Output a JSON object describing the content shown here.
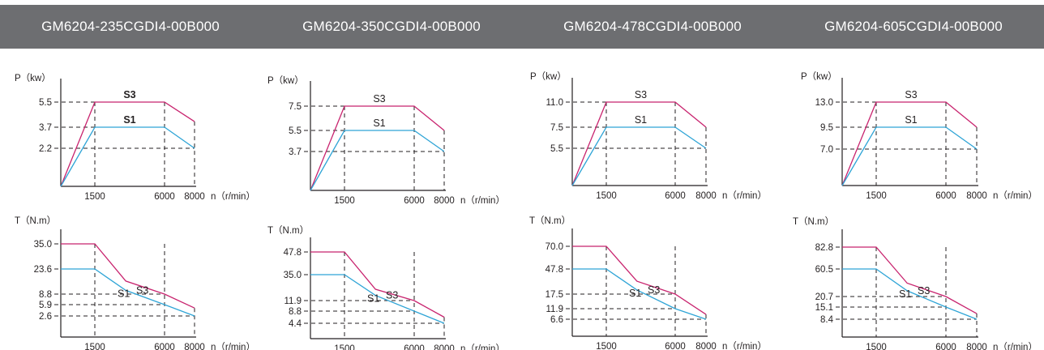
{
  "colors": {
    "header_bg": "#6d6e71",
    "s3": "#c8236e",
    "s1": "#2ea4d6",
    "axis": "#231f20"
  },
  "chart_data": [
    {
      "model": "GM6204-235CGDI4-00B000",
      "power": {
        "type": "line",
        "ylabel": "P（kw）",
        "xlabel": "n（r/min）",
        "x_ticks": [
          "1500",
          "6000",
          "8000"
        ],
        "y_ticks": [
          "5.5",
          "3.7",
          "2.2"
        ],
        "bold_labels": true,
        "series": [
          {
            "name": "S3",
            "points": [
              [
                0,
                0
              ],
              [
                1500,
                5.5
              ],
              [
                6000,
                5.5
              ],
              [
                8000,
                4.1
              ]
            ]
          },
          {
            "name": "S1",
            "points": [
              [
                0,
                0
              ],
              [
                1500,
                3.7
              ],
              [
                6000,
                3.7
              ],
              [
                8000,
                2.2
              ]
            ]
          }
        ]
      },
      "torque": {
        "type": "line",
        "ylabel": "T（N.m）",
        "xlabel": "n（r/min）",
        "x_ticks": [
          "1500",
          "6000",
          "8000"
        ],
        "y_ticks": [
          "35.0",
          "23.6",
          "8.8",
          "5.9",
          "2.6"
        ],
        "series": [
          {
            "name": "S3",
            "points": [
              [
                0,
                35.0
              ],
              [
                1500,
                35.0
              ],
              [
                3500,
                16.5
              ],
              [
                6000,
                8.8
              ],
              [
                8000,
                4.9
              ]
            ]
          },
          {
            "name": "S1",
            "points": [
              [
                0,
                23.6
              ],
              [
                1500,
                23.6
              ],
              [
                3500,
                11.0
              ],
              [
                6000,
                5.9
              ],
              [
                8000,
                2.6
              ]
            ]
          }
        ]
      }
    },
    {
      "model": "GM6204-350CGDI4-00B000",
      "power": {
        "type": "line",
        "ylabel": "P（kw）",
        "xlabel": "n（r/min）",
        "x_ticks": [
          "1500",
          "6000",
          "8000"
        ],
        "y_ticks": [
          "7.5",
          "5.5",
          "3.7"
        ],
        "bold_labels": false,
        "series": [
          {
            "name": "S3",
            "points": [
              [
                0,
                0
              ],
              [
                1500,
                7.5
              ],
              [
                6000,
                7.5
              ],
              [
                8000,
                5.5
              ]
            ]
          },
          {
            "name": "S1",
            "points": [
              [
                0,
                0
              ],
              [
                1500,
                5.5
              ],
              [
                6000,
                5.5
              ],
              [
                8000,
                3.7
              ]
            ]
          }
        ]
      },
      "torque": {
        "type": "line",
        "ylabel": "T（N.m）",
        "xlabel": "n（r/min）",
        "x_ticks": [
          "1500",
          "6000",
          "8000"
        ],
        "y_ticks": [
          "47.8",
          "35.0",
          "11.9",
          "8.8",
          "4.4"
        ],
        "series": [
          {
            "name": "S3",
            "points": [
              [
                0,
                47.8
              ],
              [
                1500,
                47.8
              ],
              [
                3500,
                22.0
              ],
              [
                6000,
                11.9
              ],
              [
                8000,
                6.6
              ]
            ]
          },
          {
            "name": "S1",
            "points": [
              [
                0,
                35.0
              ],
              [
                1500,
                35.0
              ],
              [
                3500,
                16.5
              ],
              [
                6000,
                8.8
              ],
              [
                8000,
                4.4
              ]
            ]
          }
        ]
      }
    },
    {
      "model": "GM6204-478CGDI4-00B000",
      "power": {
        "type": "line",
        "ylabel": "P（kw）",
        "xlabel": "n（r/min）",
        "x_ticks": [
          "1500",
          "6000",
          "8000"
        ],
        "y_ticks": [
          "11.0",
          "7.5",
          "5.5"
        ],
        "bold_labels": false,
        "series": [
          {
            "name": "S3",
            "points": [
              [
                0,
                0
              ],
              [
                1500,
                11.0
              ],
              [
                6000,
                11.0
              ],
              [
                8000,
                7.5
              ]
            ]
          },
          {
            "name": "S1",
            "points": [
              [
                0,
                0
              ],
              [
                1500,
                7.5
              ],
              [
                6000,
                7.5
              ],
              [
                8000,
                5.5
              ]
            ]
          }
        ]
      },
      "torque": {
        "type": "line",
        "ylabel": "T（N.m）",
        "xlabel": "n（r/min）",
        "x_ticks": [
          "1500",
          "6000",
          "8000"
        ],
        "y_ticks": [
          "70.0",
          "47.8",
          "17.5",
          "11.9",
          "6.6"
        ],
        "series": [
          {
            "name": "S3",
            "points": [
              [
                0,
                70.0
              ],
              [
                1500,
                70.0
              ],
              [
                3500,
                33.0
              ],
              [
                6000,
                17.5
              ],
              [
                8000,
                9.0
              ]
            ]
          },
          {
            "name": "S1",
            "points": [
              [
                0,
                47.8
              ],
              [
                1500,
                47.8
              ],
              [
                3500,
                22.5
              ],
              [
                6000,
                11.9
              ],
              [
                8000,
                6.6
              ]
            ]
          }
        ]
      }
    },
    {
      "model": "GM6204-605CGDI4-00B000",
      "power": {
        "type": "line",
        "ylabel": "P（kw）",
        "xlabel": "n（r/min）",
        "x_ticks": [
          "1500",
          "6000",
          "8000"
        ],
        "y_ticks": [
          "13.0",
          "9.5",
          "7.0"
        ],
        "bold_labels": false,
        "series": [
          {
            "name": "S3",
            "points": [
              [
                0,
                0
              ],
              [
                1500,
                13.0
              ],
              [
                6000,
                13.0
              ],
              [
                8000,
                9.5
              ]
            ]
          },
          {
            "name": "S1",
            "points": [
              [
                0,
                0
              ],
              [
                1500,
                9.5
              ],
              [
                6000,
                9.5
              ],
              [
                8000,
                7.0
              ]
            ]
          }
        ]
      },
      "torque": {
        "type": "line",
        "ylabel": "T（N.m）",
        "xlabel": "n（r/min）",
        "x_ticks": [
          "1500",
          "6000",
          "8000"
        ],
        "y_ticks": [
          "82.8",
          "60.5",
          "20.7",
          "15.1",
          "8.4"
        ],
        "series": [
          {
            "name": "S3",
            "points": [
              [
                0,
                82.8
              ],
              [
                1500,
                82.8
              ],
              [
                3500,
                40.0
              ],
              [
                6000,
                20.7
              ],
              [
                8000,
                11.5
              ]
            ]
          },
          {
            "name": "S1",
            "points": [
              [
                0,
                60.5
              ],
              [
                1500,
                60.5
              ],
              [
                3500,
                29.0
              ],
              [
                6000,
                15.1
              ],
              [
                8000,
                8.4
              ]
            ]
          }
        ]
      }
    }
  ]
}
